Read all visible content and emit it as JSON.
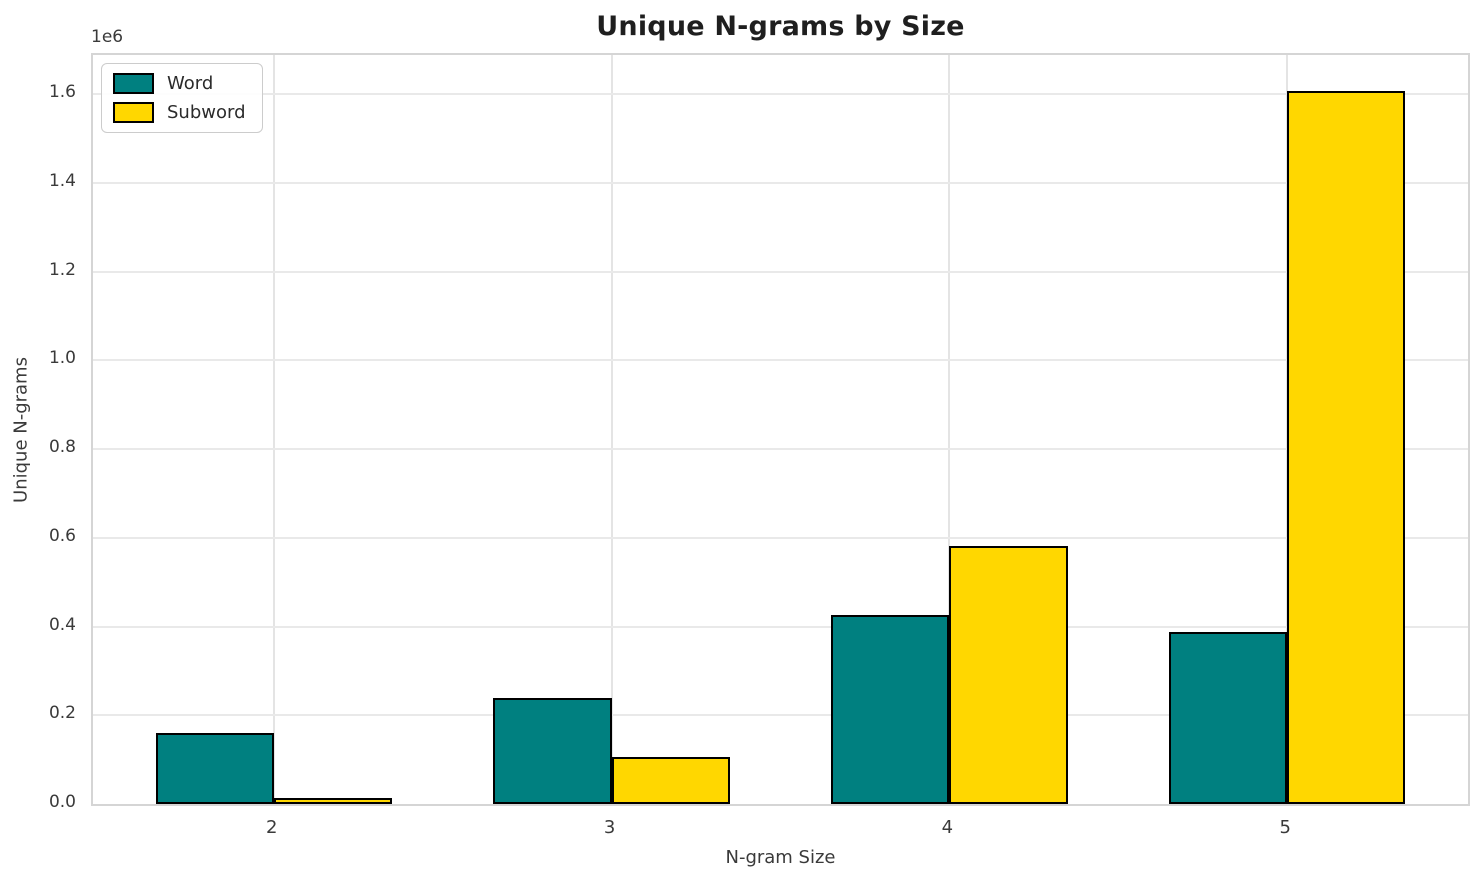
{
  "chart_data": {
    "type": "bar",
    "title": "Unique N-grams by Size",
    "xlabel": "N-gram Size",
    "ylabel": "Unique N-grams",
    "y_offset_label": "1e6",
    "categories": [
      2,
      3,
      4,
      5
    ],
    "series": [
      {
        "name": "Word",
        "color": "#008080",
        "values": [
          159000,
          238000,
          426000,
          388000
        ]
      },
      {
        "name": "Subword",
        "color": "#ffd700",
        "values": [
          13000,
          105000,
          581000,
          1607000
        ]
      }
    ],
    "bar_width": 0.35,
    "edge_color": "#000000",
    "xlim": [
      1.465,
      5.535
    ],
    "ylim": [
      0,
      1688000
    ],
    "yticks": [
      {
        "value": 0,
        "label": "0.0"
      },
      {
        "value": 200000,
        "label": "0.2"
      },
      {
        "value": 400000,
        "label": "0.4"
      },
      {
        "value": 600000,
        "label": "0.6"
      },
      {
        "value": 800000,
        "label": "0.8"
      },
      {
        "value": 1000000,
        "label": "1.0"
      },
      {
        "value": 1200000,
        "label": "1.2"
      },
      {
        "value": 1400000,
        "label": "1.4"
      },
      {
        "value": 1600000,
        "label": "1.6"
      }
    ],
    "grid": true,
    "legend": {
      "position": "upper left",
      "entries": [
        "Word",
        "Subword"
      ]
    }
  }
}
